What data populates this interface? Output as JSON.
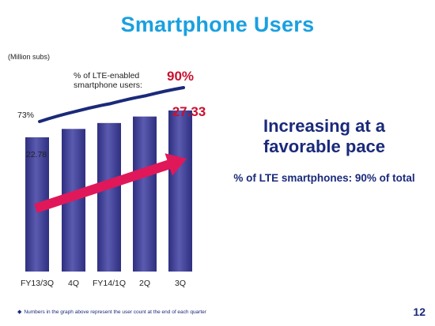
{
  "title": "Smartphone Users",
  "headline": "Increasing at a favorable pace",
  "subheadline": "% of LTE smartphones: 90% of total",
  "footnote": "Numbers in the graph above represent the user count at the end of each quarter",
  "page_number": "12",
  "colors": {
    "title": "#1aa0e0",
    "bar": "#3f3f97",
    "line": "#1a2a7a",
    "highlight": "#c8102e",
    "arrow": "#e0185a"
  },
  "chart_data": {
    "type": "bar",
    "unit_label": "(Million subs)",
    "categories": [
      "FY13/3Q",
      "4Q",
      "FY14/1Q",
      "2Q",
      "3Q"
    ],
    "values": [
      22.78,
      24.2,
      25.2,
      26.3,
      27.33
    ],
    "value_labels": {
      "first": "22.78",
      "last": "27.33"
    },
    "ylim": [
      0,
      30
    ],
    "trend_arrow": true,
    "lte_line": {
      "label": "% of LTE-enabled smartphone users:",
      "values": [
        73,
        78,
        82,
        86,
        90
      ],
      "start_label": "73%",
      "end_label": "90%"
    }
  }
}
